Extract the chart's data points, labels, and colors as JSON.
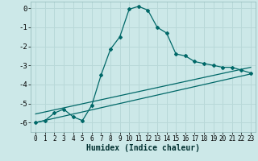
{
  "xlabel": "Humidex (Indice chaleur)",
  "ylabel": "",
  "background_color": "#cce8e8",
  "grid_color": "#b8d8d8",
  "line_color": "#006868",
  "xlim": [
    -0.5,
    23.5
  ],
  "ylim": [
    -6.5,
    0.35
  ],
  "xticks": [
    0,
    1,
    2,
    3,
    4,
    5,
    6,
    7,
    8,
    9,
    10,
    11,
    12,
    13,
    14,
    15,
    16,
    17,
    18,
    19,
    20,
    21,
    22,
    23
  ],
  "yticks": [
    0,
    -1,
    -2,
    -3,
    -4,
    -5,
    -6
  ],
  "line1_x": [
    0,
    1,
    2,
    3,
    4,
    5,
    6,
    7,
    8,
    9,
    10,
    11,
    12,
    13,
    14,
    15,
    16,
    17,
    18,
    19,
    20,
    21,
    22,
    23
  ],
  "line1_y": [
    -6.0,
    -5.9,
    -5.5,
    -5.3,
    -5.7,
    -5.9,
    -5.1,
    -3.5,
    -2.15,
    -1.5,
    -0.05,
    0.1,
    -0.1,
    -1.0,
    -1.3,
    -2.4,
    -2.5,
    -2.8,
    -2.9,
    -3.0,
    -3.1,
    -3.1,
    -3.25,
    -3.4
  ],
  "line2_x": [
    0,
    23
  ],
  "line2_y": [
    -5.55,
    -3.1
  ],
  "line3_x": [
    0,
    23
  ],
  "line3_y": [
    -6.0,
    -3.45
  ]
}
